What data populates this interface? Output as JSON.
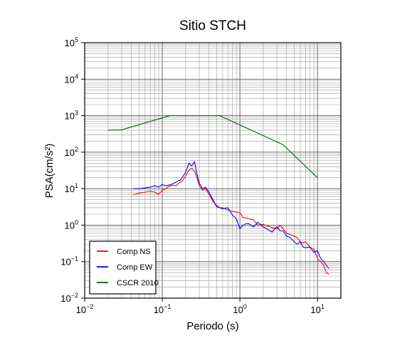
{
  "chart_data": {
    "type": "line",
    "title": "Sitio STCH",
    "xlabel": "Periodo (s)",
    "ylabel": "PSA(cm/s²)",
    "x_scale": "log",
    "y_scale": "log",
    "xlim": [
      0.01,
      20
    ],
    "ylim": [
      0.01,
      100000
    ],
    "grid": true,
    "legend_position": "bottom-left",
    "x_ticks": [
      {
        "value": 0.01,
        "base": "10",
        "exp": "−2"
      },
      {
        "value": 0.1,
        "base": "10",
        "exp": "−1"
      },
      {
        "value": 1,
        "base": "10",
        "exp": "0"
      },
      {
        "value": 10,
        "base": "10",
        "exp": "1"
      }
    ],
    "y_ticks": [
      {
        "value": 0.01,
        "base": "10",
        "exp": "−2"
      },
      {
        "value": 0.1,
        "base": "10",
        "exp": "−1"
      },
      {
        "value": 1,
        "base": "10",
        "exp": "0"
      },
      {
        "value": 10,
        "base": "10",
        "exp": "1"
      },
      {
        "value": 100,
        "base": "10",
        "exp": "2"
      },
      {
        "value": 1000,
        "base": "10",
        "exp": "3"
      },
      {
        "value": 10000,
        "base": "10",
        "exp": "4"
      },
      {
        "value": 100000,
        "base": "10",
        "exp": "5"
      }
    ],
    "series": [
      {
        "name": "Comp NS",
        "color": "#ff0000",
        "x": [
          0.042,
          0.05,
          0.06,
          0.07,
          0.08,
          0.09,
          0.1,
          0.11,
          0.12,
          0.13,
          0.14,
          0.15,
          0.16,
          0.17,
          0.18,
          0.2,
          0.22,
          0.24,
          0.26,
          0.28,
          0.3,
          0.33,
          0.36,
          0.4,
          0.45,
          0.5,
          0.55,
          0.6,
          0.7,
          0.8,
          0.9,
          1.0,
          1.1,
          1.2,
          1.3,
          1.5,
          1.7,
          2.0,
          2.3,
          2.6,
          3.0,
          3.3,
          3.6,
          4.0,
          4.5,
          5.0,
          5.5,
          6.0,
          6.5,
          7.0,
          8.0,
          9.0,
          10.0,
          11.0,
          12.0,
          13.0,
          14.0
        ],
        "values": [
          6.8,
          7.5,
          8.0,
          8.5,
          8.0,
          7.0,
          9.0,
          10.0,
          11.5,
          12.0,
          12.5,
          12.0,
          13.5,
          15.0,
          16.0,
          22.0,
          32.0,
          36.0,
          30.0,
          20.0,
          12.0,
          9.0,
          10.0,
          7.0,
          4.5,
          3.5,
          3.0,
          3.0,
          2.6,
          2.4,
          2.3,
          2.2,
          1.6,
          1.6,
          1.5,
          1.4,
          1.0,
          1.05,
          0.95,
          0.85,
          0.8,
          1.0,
          0.8,
          0.6,
          0.55,
          0.5,
          0.45,
          0.35,
          0.33,
          0.35,
          0.25,
          0.22,
          0.12,
          0.1,
          0.08,
          0.05,
          0.045
        ]
      },
      {
        "name": "Comp EW",
        "color": "#0000ff",
        "x": [
          0.042,
          0.05,
          0.06,
          0.07,
          0.08,
          0.09,
          0.1,
          0.11,
          0.12,
          0.13,
          0.14,
          0.15,
          0.16,
          0.17,
          0.18,
          0.2,
          0.22,
          0.24,
          0.26,
          0.28,
          0.3,
          0.33,
          0.36,
          0.4,
          0.45,
          0.5,
          0.55,
          0.6,
          0.7,
          0.8,
          0.9,
          1.0,
          1.1,
          1.2,
          1.3,
          1.5,
          1.7,
          2.0,
          2.3,
          2.6,
          3.0,
          3.3,
          3.6,
          4.0,
          4.5,
          5.0,
          5.5,
          6.0,
          6.5,
          7.0,
          8.0,
          9.0,
          10.0,
          11.0,
          12.0,
          13.0,
          14.0
        ],
        "values": [
          10.0,
          10.0,
          10.5,
          11.0,
          12.0,
          11.0,
          13.0,
          12.0,
          12.5,
          13.0,
          14.0,
          15.0,
          16.5,
          17.0,
          20.0,
          28.0,
          50.0,
          42.0,
          55.0,
          25.0,
          14.0,
          10.0,
          11.0,
          8.0,
          5.0,
          3.2,
          3.0,
          2.8,
          3.0,
          1.9,
          1.5,
          0.8,
          1.0,
          1.1,
          1.1,
          0.9,
          1.2,
          0.9,
          0.75,
          0.65,
          0.9,
          0.7,
          0.7,
          0.5,
          0.45,
          0.35,
          0.3,
          0.35,
          0.25,
          0.24,
          0.25,
          0.18,
          0.2,
          0.12,
          0.1,
          0.08,
          0.065
        ]
      },
      {
        "name": "CSCR 2010",
        "color": "#006400",
        "x": [
          0.02,
          0.03,
          0.125,
          0.55,
          3.6,
          10.0
        ],
        "values": [
          400,
          410,
          1000,
          1000,
          160,
          20
        ]
      }
    ]
  }
}
